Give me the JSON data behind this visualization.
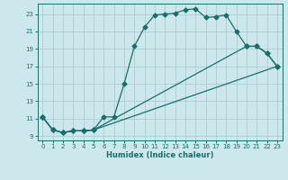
{
  "xlabel": "Humidex (Indice chaleur)",
  "ylabel": "",
  "bg_color": "#cce8ec",
  "grid_color": "#aacdd4",
  "line_color": "#1a6e6a",
  "xlim": [
    -0.5,
    23.5
  ],
  "ylim": [
    8.5,
    24.2
  ],
  "xticks": [
    0,
    1,
    2,
    3,
    4,
    5,
    6,
    7,
    8,
    9,
    10,
    11,
    12,
    13,
    14,
    15,
    16,
    17,
    18,
    19,
    20,
    21,
    22,
    23
  ],
  "yticks": [
    9,
    11,
    13,
    15,
    17,
    19,
    21,
    23
  ],
  "line1_x": [
    0,
    1,
    2,
    3,
    4,
    5,
    6,
    7,
    8,
    9,
    10,
    11,
    12,
    13,
    14,
    15,
    16,
    17,
    18,
    19,
    20,
    21,
    22,
    23
  ],
  "line1_y": [
    11.2,
    9.7,
    9.4,
    9.6,
    9.6,
    9.7,
    11.2,
    11.2,
    15.0,
    19.3,
    21.5,
    22.9,
    23.0,
    23.1,
    23.5,
    23.6,
    22.6,
    22.7,
    22.9,
    21.0,
    19.3,
    19.3,
    18.5,
    17.0
  ],
  "line2_x": [
    0,
    1,
    2,
    3,
    4,
    5,
    23
  ],
  "line2_y": [
    11.2,
    9.7,
    9.4,
    9.6,
    9.6,
    9.7,
    17.0
  ],
  "line3_x": [
    0,
    1,
    2,
    3,
    4,
    5,
    20,
    21,
    22,
    23
  ],
  "line3_y": [
    11.2,
    9.7,
    9.4,
    9.6,
    9.6,
    9.7,
    19.3,
    19.3,
    18.5,
    17.0
  ]
}
